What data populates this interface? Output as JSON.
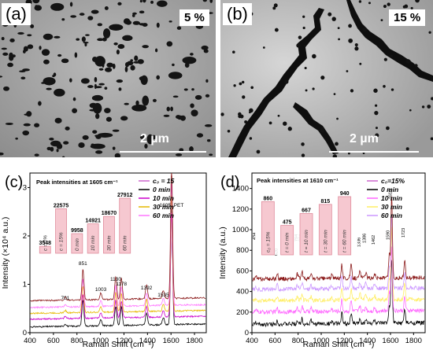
{
  "panel_a": {
    "label": "(a)",
    "percent": "5 %",
    "scale": "2 µm"
  },
  "panel_b": {
    "label": "(b)",
    "percent": "15 %",
    "scale": "2 µm"
  },
  "chart_data": [
    {
      "type": "line",
      "panel_label": "(c)",
      "ylabel": "Intensity (×10⁴ a.u.)",
      "xlabel": "Raman Shift (cm⁻¹)",
      "xlim": [
        400,
        1900
      ],
      "ylim": [
        0,
        3.3
      ],
      "xticks": [
        "400",
        "600",
        "800",
        "1000",
        "1200",
        "1400",
        "1600",
        "1800"
      ],
      "yticks": [
        "0",
        "1",
        "2",
        "3"
      ],
      "legend": [
        "c₀ = 15",
        "0 min",
        "10 min",
        "30 min",
        "60 min"
      ],
      "series_colors": [
        "#000000",
        "#cc00cc",
        "#e6b800",
        "#ff77ff",
        "#8b1a1a"
      ],
      "peak_annotations": [
        "701",
        "851",
        "1003",
        "1130",
        "1178",
        "1392",
        "1535",
        "1605, PET"
      ],
      "peak_positions": [
        701,
        851,
        1003,
        1130,
        1178,
        1392,
        1535,
        1605
      ],
      "inset": {
        "title": "Peak intensities at 1605 cm⁻¹",
        "values": [
          "3548",
          "22575",
          "9958",
          "14921",
          "18670",
          "27912"
        ],
        "labels": [
          "c = 0%",
          "c = 15%",
          "0 min",
          "10 min",
          "30 min",
          "60 min"
        ],
        "heights": [
          3548,
          22575,
          9958,
          14921,
          18670,
          27912
        ]
      }
    },
    {
      "type": "line",
      "panel_label": "(d)",
      "ylabel": "Intensity (a.u.)",
      "xlabel": "Raman Shift (cm⁻¹)",
      "xlim": [
        400,
        1900
      ],
      "ylim": [
        0,
        1550
      ],
      "xticks": [
        "400",
        "600",
        "800",
        "1000",
        "1200",
        "1400",
        "1600",
        "1800"
      ],
      "yticks": [
        "0",
        "200",
        "400",
        "600",
        "800",
        "1000",
        "1200",
        "1400"
      ],
      "legend": [
        "c₀=15%",
        "0 min",
        "10 min",
        "30 min",
        "60 min"
      ],
      "series_colors": [
        "#000000",
        "#ff66ff",
        "#ffee66",
        "#cc99ff",
        "#8b1a1a"
      ],
      "peak_annotations": [
        "434",
        "620",
        "794",
        "834",
        "912",
        "1092",
        "1178",
        "1259",
        "1336",
        "1386",
        "1462",
        "1590",
        "1610",
        "1723"
      ],
      "peak_positions": [
        434,
        620,
        794,
        834,
        912,
        1092,
        1178,
        1259,
        1336,
        1386,
        1462,
        1590,
        1610,
        1723
      ],
      "inset": {
        "title": "Peak intensities at 1610 cm⁻¹",
        "values": [
          "860",
          "475",
          "667",
          "815",
          "940"
        ],
        "labels": [
          "c₀ = 15%",
          "t = 0 min",
          "t = 10 min",
          "t = 30 min",
          "t = 60 min"
        ],
        "heights": [
          860,
          475,
          667,
          815,
          940
        ]
      }
    }
  ]
}
